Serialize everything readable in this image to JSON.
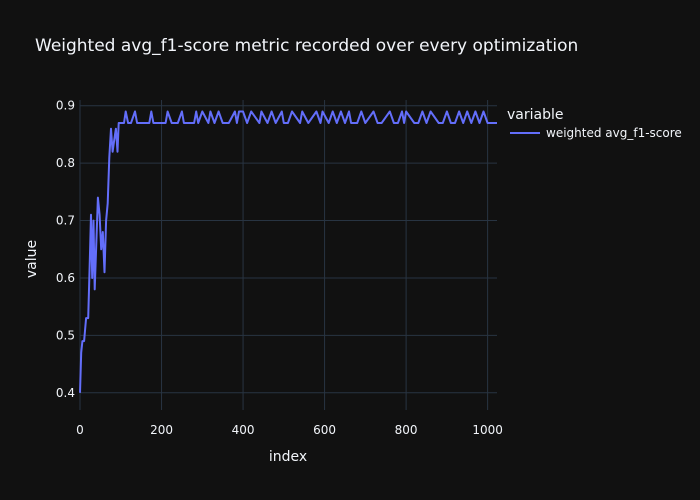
{
  "chart_data": {
    "type": "line",
    "title": "Weighted avg_f1-score metric recorded over every optimization",
    "xlabel": "index",
    "ylabel": "value",
    "xlim": [
      0,
      1023
    ],
    "ylim": [
      0.37,
      0.91
    ],
    "xticks": [
      0,
      200,
      400,
      600,
      800,
      1000
    ],
    "yticks": [
      0.4,
      0.5,
      0.6,
      0.7,
      0.8,
      0.9
    ],
    "grid": true,
    "legend": {
      "title": "variable",
      "position": "top-right"
    },
    "colors": {
      "background": "#111111",
      "grid": "#283442",
      "text": "#f2f5fa",
      "series": "#636efa"
    },
    "series": [
      {
        "name": "weighted avg_f1-score",
        "x": [
          0,
          3,
          6,
          10,
          15,
          20,
          24,
          27,
          30,
          33,
          36,
          40,
          44,
          48,
          52,
          56,
          60,
          64,
          68,
          72,
          76,
          80,
          84,
          88,
          92,
          95,
          100,
          108,
          112,
          118,
          125,
          135,
          140,
          150,
          160,
          170,
          175,
          180,
          190,
          200,
          210,
          215,
          225,
          240,
          250,
          255,
          265,
          280,
          285,
          290,
          300,
          315,
          320,
          330,
          340,
          350,
          365,
          380,
          385,
          390,
          400,
          410,
          420,
          440,
          445,
          460,
          470,
          480,
          495,
          500,
          510,
          520,
          540,
          545,
          560,
          580,
          590,
          595,
          610,
          620,
          630,
          640,
          650,
          660,
          665,
          680,
          690,
          700,
          720,
          730,
          740,
          760,
          770,
          780,
          790,
          795,
          800,
          820,
          830,
          840,
          850,
          860,
          880,
          890,
          900,
          910,
          920,
          930,
          940,
          950,
          960,
          970,
          980,
          990,
          1000,
          1010,
          1023
        ],
        "values": [
          0.4,
          0.47,
          0.49,
          0.49,
          0.53,
          0.53,
          0.63,
          0.71,
          0.6,
          0.7,
          0.58,
          0.66,
          0.74,
          0.71,
          0.65,
          0.68,
          0.61,
          0.7,
          0.73,
          0.81,
          0.86,
          0.82,
          0.84,
          0.86,
          0.82,
          0.87,
          0.87,
          0.87,
          0.89,
          0.87,
          0.87,
          0.89,
          0.87,
          0.87,
          0.87,
          0.87,
          0.89,
          0.87,
          0.87,
          0.87,
          0.87,
          0.89,
          0.87,
          0.87,
          0.89,
          0.87,
          0.87,
          0.87,
          0.89,
          0.87,
          0.89,
          0.87,
          0.89,
          0.87,
          0.89,
          0.87,
          0.87,
          0.89,
          0.87,
          0.89,
          0.89,
          0.87,
          0.89,
          0.87,
          0.89,
          0.87,
          0.89,
          0.87,
          0.89,
          0.87,
          0.87,
          0.89,
          0.87,
          0.89,
          0.87,
          0.89,
          0.87,
          0.89,
          0.87,
          0.89,
          0.87,
          0.89,
          0.87,
          0.89,
          0.87,
          0.87,
          0.89,
          0.87,
          0.89,
          0.87,
          0.87,
          0.89,
          0.87,
          0.87,
          0.89,
          0.87,
          0.89,
          0.87,
          0.87,
          0.89,
          0.87,
          0.89,
          0.87,
          0.87,
          0.89,
          0.87,
          0.87,
          0.89,
          0.87,
          0.89,
          0.87,
          0.89,
          0.87,
          0.89,
          0.87,
          0.87,
          0.87
        ]
      }
    ]
  }
}
